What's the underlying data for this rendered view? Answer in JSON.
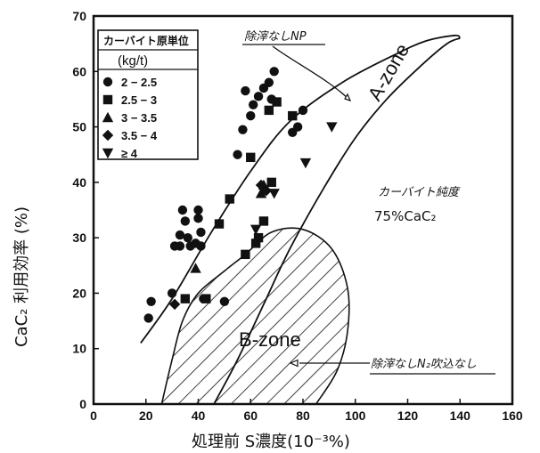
{
  "chart_data": {
    "type": "scatter",
    "xlabel": "処理前 S濃度(10⁻³%)",
    "ylabel": "CaC₂ 利用効率 (%)",
    "xlim": [
      0,
      160
    ],
    "ylim": [
      0,
      70
    ],
    "x_ticks": [
      "0",
      "20",
      "40",
      "60",
      "80",
      "100",
      "120",
      "140",
      "160"
    ],
    "y_ticks": [
      "0",
      "10",
      "20",
      "30",
      "40",
      "50",
      "60",
      "70"
    ],
    "legend": {
      "title": "カーバイト原単位",
      "unit": "(kg/t)",
      "placement": "top-left"
    },
    "series": [
      {
        "name": "2 − 2.5",
        "marker": "circle",
        "points": [
          [
            21,
            15.5
          ],
          [
            22,
            18.5
          ],
          [
            30,
            20
          ],
          [
            31,
            28.5
          ],
          [
            33,
            30.5
          ],
          [
            33,
            28.5
          ],
          [
            34,
            35
          ],
          [
            35,
            33
          ],
          [
            36,
            30
          ],
          [
            37,
            28.5
          ],
          [
            39,
            29
          ],
          [
            40,
            33.5
          ],
          [
            40,
            35
          ],
          [
            41,
            31
          ],
          [
            41,
            28.5
          ],
          [
            42,
            19
          ],
          [
            50,
            18.5
          ],
          [
            55,
            45
          ],
          [
            57,
            49.5
          ],
          [
            58,
            56.5
          ],
          [
            60,
            52
          ],
          [
            61,
            54
          ],
          [
            63,
            55.5
          ],
          [
            65,
            57
          ],
          [
            67,
            58
          ],
          [
            68,
            55
          ],
          [
            69,
            60
          ],
          [
            76,
            49
          ],
          [
            78,
            50
          ],
          [
            80,
            53
          ]
        ]
      },
      {
        "name": "2.5 − 3",
        "marker": "square",
        "points": [
          [
            35,
            19
          ],
          [
            43,
            19
          ],
          [
            48,
            32.5
          ],
          [
            52,
            37
          ],
          [
            58,
            27
          ],
          [
            60,
            44.5
          ],
          [
            62,
            29
          ],
          [
            63,
            30
          ],
          [
            65,
            33
          ],
          [
            67,
            53
          ],
          [
            68,
            40
          ],
          [
            70,
            54.5
          ],
          [
            76,
            52
          ]
        ]
      },
      {
        "name": "3 − 3.5",
        "marker": "triangle-up",
        "points": [
          [
            39,
            24.5
          ],
          [
            64,
            38
          ],
          [
            65,
            39.5
          ]
        ]
      },
      {
        "name": "3.5 − 4",
        "marker": "diamond",
        "points": [
          [
            31,
            18
          ],
          [
            64,
            39.5
          ],
          [
            66,
            38.5
          ]
        ]
      },
      {
        "name": "≥ 4",
        "marker": "triangle-down",
        "points": [
          [
            62,
            31.5
          ],
          [
            69,
            38
          ],
          [
            81,
            43.5
          ],
          [
            91,
            50
          ]
        ]
      }
    ],
    "regions": [
      {
        "name": "A-zone",
        "description": "upper boundary band",
        "upper_boundary": [
          [
            18,
            11
          ],
          [
            30,
            19
          ],
          [
            45,
            31
          ],
          [
            60,
            42
          ],
          [
            75,
            51
          ],
          [
            95,
            58
          ],
          [
            115,
            63
          ],
          [
            127,
            65.5
          ],
          [
            138,
            66.5
          ],
          [
            140,
            66
          ]
        ],
        "lower_boundary": [
          [
            46,
            0
          ],
          [
            55,
            8
          ],
          [
            65,
            18
          ],
          [
            75,
            28
          ],
          [
            88,
            39
          ],
          [
            100,
            48
          ],
          [
            112,
            55
          ],
          [
            125,
            61
          ],
          [
            135,
            65
          ],
          [
            140,
            66
          ]
        ]
      },
      {
        "name": "B-zone",
        "description": "hatched region",
        "outline": [
          [
            26,
            0
          ],
          [
            30,
            8
          ],
          [
            34,
            15
          ],
          [
            40,
            20
          ],
          [
            50,
            24
          ],
          [
            58,
            27
          ],
          [
            68,
            31
          ],
          [
            80,
            31.5
          ],
          [
            91,
            28
          ],
          [
            97,
            21
          ],
          [
            97,
            13
          ],
          [
            93,
            6
          ],
          [
            85,
            0
          ]
        ]
      }
    ],
    "annotations": [
      {
        "text": "除滓なしNP"
      },
      {
        "text": "カーバイト純度"
      },
      {
        "text": "75%CaC₂"
      },
      {
        "text": "除滓なしN₂吹込なし"
      }
    ],
    "grid": false
  }
}
